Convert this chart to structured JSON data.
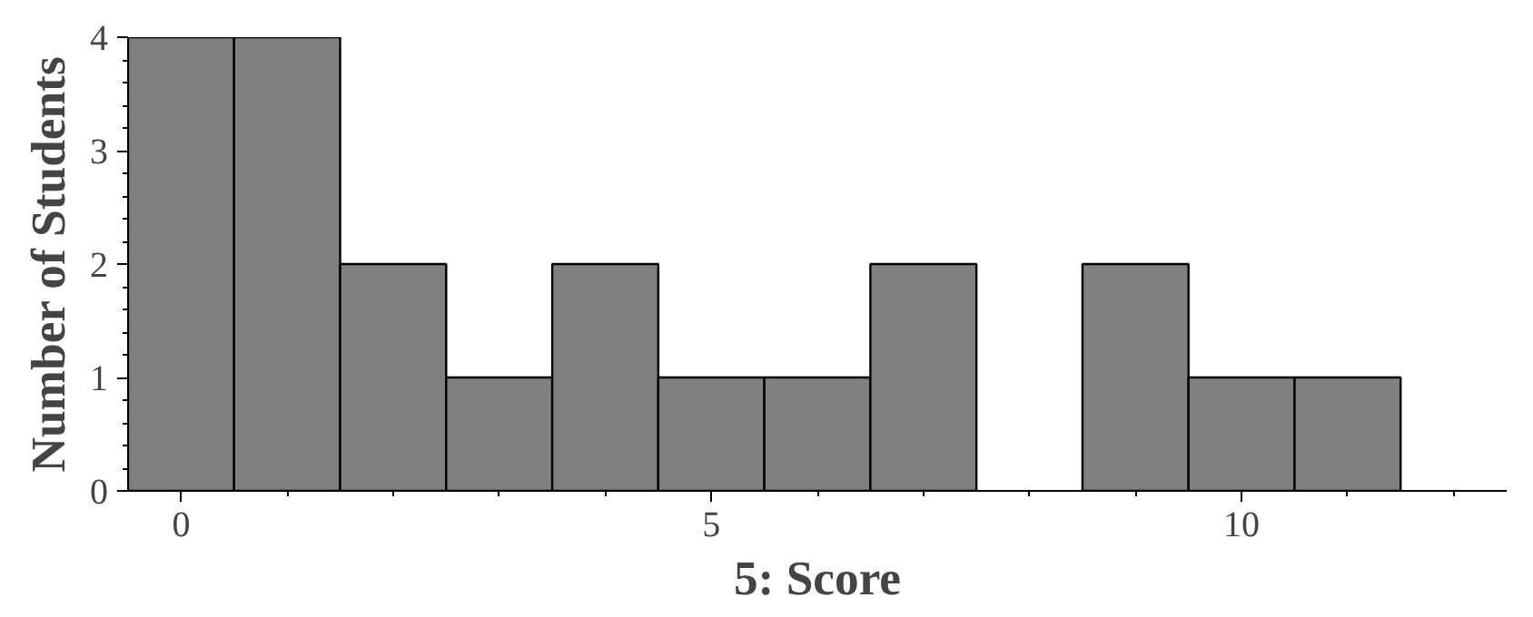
{
  "chart_data": {
    "type": "histogram",
    "xlabel": "5: Score",
    "ylabel": "Number of Students",
    "bins": [
      -0.5,
      0.5,
      1.5,
      2.5,
      3.5,
      4.5,
      5.5,
      6.5,
      7.5,
      8.5,
      9.5,
      10.5,
      11.5
    ],
    "values": [
      4,
      4,
      2,
      1,
      2,
      1,
      1,
      2,
      0,
      2,
      1,
      1
    ],
    "color": "#808080",
    "xlim": [
      -0.5,
      12.5
    ],
    "xticks": [
      0,
      5,
      10
    ],
    "ylim": [
      0,
      4
    ],
    "yticks": [
      0,
      1,
      2,
      3,
      4
    ],
    "grid": false
  }
}
